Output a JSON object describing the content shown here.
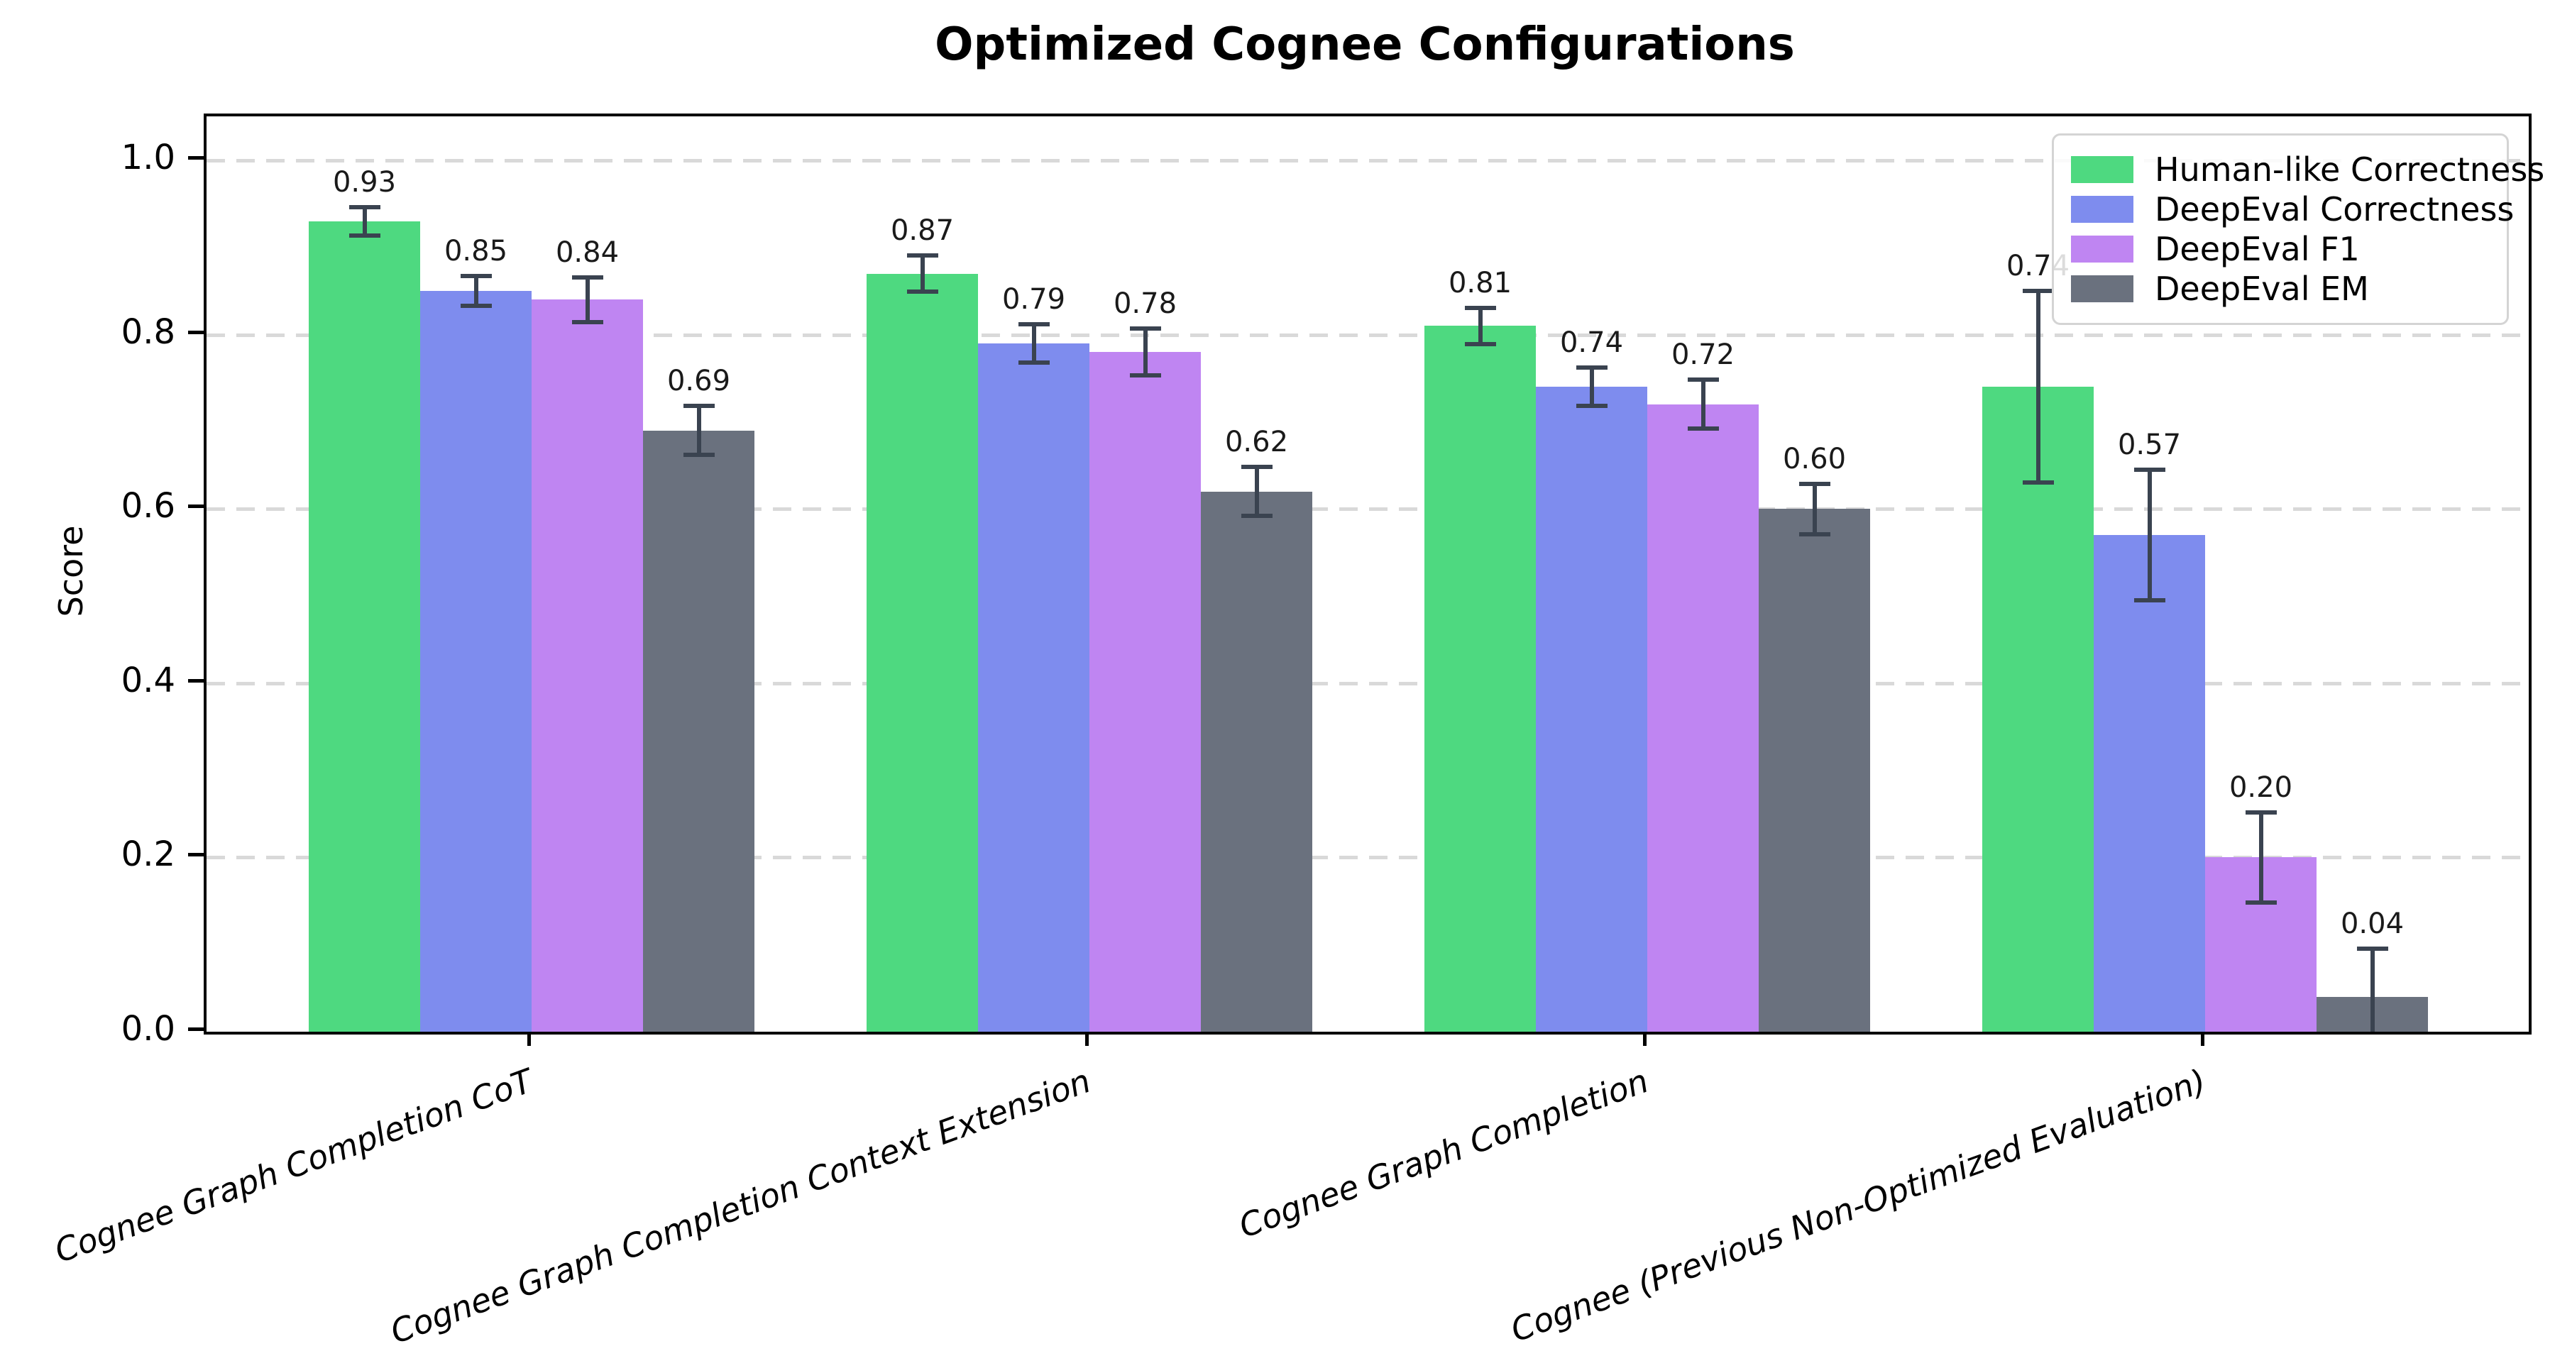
{
  "chart_data": {
    "type": "bar",
    "title": "Optimized Cognee Configurations",
    "ylabel": "Score",
    "xlabel": "",
    "ylim": [
      0,
      1.05
    ],
    "ytick_labels": [
      "0.0",
      "0.2",
      "0.4",
      "0.6",
      "0.8",
      "1.0"
    ],
    "yticks": [
      0.0,
      0.2,
      0.4,
      0.6,
      0.8,
      1.0
    ],
    "grid": "horizontal-dashed",
    "legend_position": "upper-right",
    "categories": [
      "Cognee Graph Completion CoT",
      "Cognee Graph Completion Context Extension",
      "Cognee Graph Completion",
      "Cognee (Previous Non-Optimized Evaluation)"
    ],
    "series": [
      {
        "name": "Human-like Correctness",
        "color": "#4ed980",
        "values": [
          0.93,
          0.87,
          0.81,
          0.74
        ],
        "errors": [
          0.016,
          0.021,
          0.021,
          0.11
        ],
        "labels": [
          "0.93",
          "0.87",
          "0.81",
          "0.74"
        ]
      },
      {
        "name": "DeepEval Correctness",
        "color": "#7e8cee",
        "values": [
          0.85,
          0.79,
          0.74,
          0.57
        ],
        "errors": [
          0.017,
          0.022,
          0.022,
          0.075
        ],
        "labels": [
          "0.85",
          "0.79",
          "0.74",
          "0.57"
        ]
      },
      {
        "name": "DeepEval F1",
        "color": "#bf85f2",
        "values": [
          0.84,
          0.78,
          0.72,
          0.2
        ],
        "errors": [
          0.026,
          0.027,
          0.028,
          0.052
        ],
        "labels": [
          "0.84",
          "0.78",
          "0.72",
          "0.20"
        ]
      },
      {
        "name": "DeepEval EM",
        "color": "#6a717e",
        "values": [
          0.69,
          0.62,
          0.6,
          0.04
        ],
        "errors": [
          0.028,
          0.028,
          0.029,
          0.055
        ],
        "labels": [
          "0.69",
          "0.62",
          "0.60",
          "0.04"
        ]
      }
    ],
    "error_bar_color": "#3a4350"
  }
}
